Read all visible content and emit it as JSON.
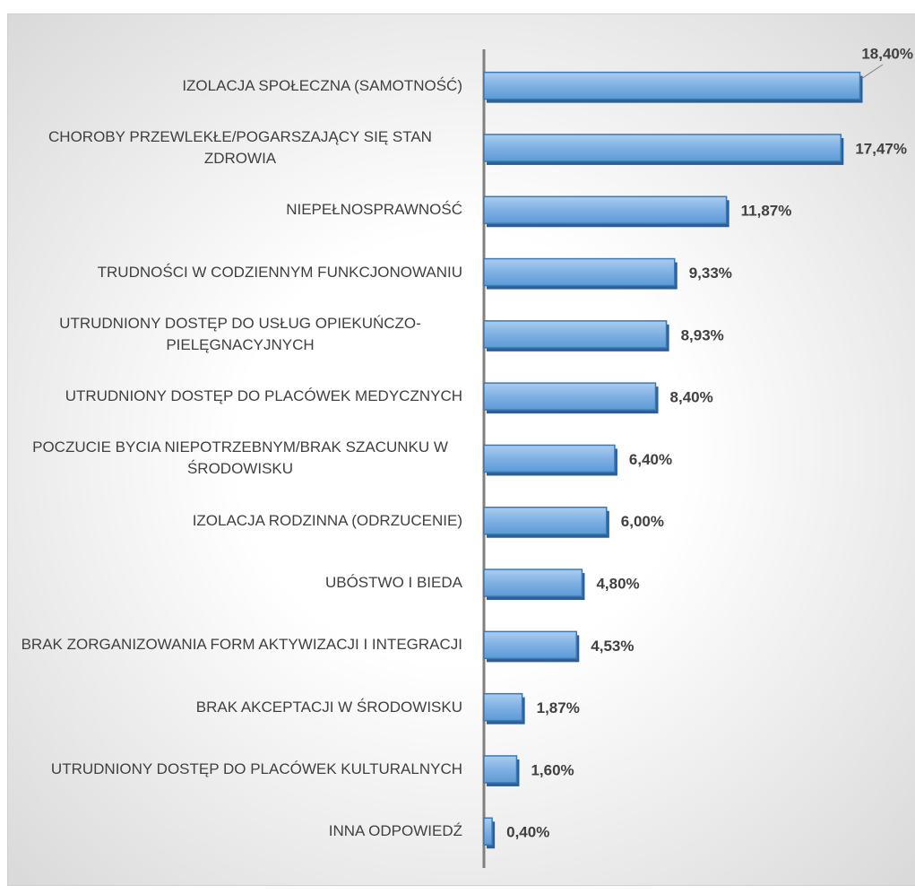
{
  "chart_data": {
    "type": "bar",
    "orientation": "horizontal",
    "categories": [
      "IZOLACJA SPOŁECZNA (SAMOTNOŚĆ)",
      "CHOROBY PRZEWLEKŁE/POGARSZAJĄCY SIĘ STAN ZDROWIA",
      "NIEPEŁNOSPRAWNOŚĆ",
      "TRUDNOŚCI W CODZIENNYM FUNKCJONOWANIU",
      "UTRUDNIONY DOSTĘP DO USŁUG OPIEKUŃCZO-PIELĘGNACYJNYCH",
      "UTRUDNIONY DOSTĘP DO PLACÓWEK MEDYCZNYCH",
      "POCZUCIE BYCIA NIEPOTRZEBNYM/BRAK SZACUNKU W ŚRODOWISKU",
      "IZOLACJA RODZINNA (ODRZUCENIE)",
      "UBÓSTWO I BIEDA",
      "BRAK ZORGANIZOWANIA FORM AKTYWIZACJI I INTEGRACJI",
      "BRAK AKCEPTACJI W ŚRODOWISKU",
      "UTRUDNIONY DOSTĘP DO PLACÓWEK KULTURALNYCH",
      "INNA ODPOWIEDŹ"
    ],
    "values": [
      18.4,
      17.47,
      11.87,
      9.33,
      8.93,
      8.4,
      6.4,
      6.0,
      4.8,
      4.53,
      1.87,
      1.6,
      0.4
    ],
    "value_labels": [
      "18,40%",
      "17,47%",
      "11,87%",
      "9,33%",
      "8,93%",
      "8,40%",
      "6,40%",
      "6,00%",
      "4,80%",
      "4,53%",
      "1,87%",
      "1,60%",
      "0,40%"
    ],
    "color": "#5b9bd5",
    "xlim": [
      0,
      20
    ]
  }
}
